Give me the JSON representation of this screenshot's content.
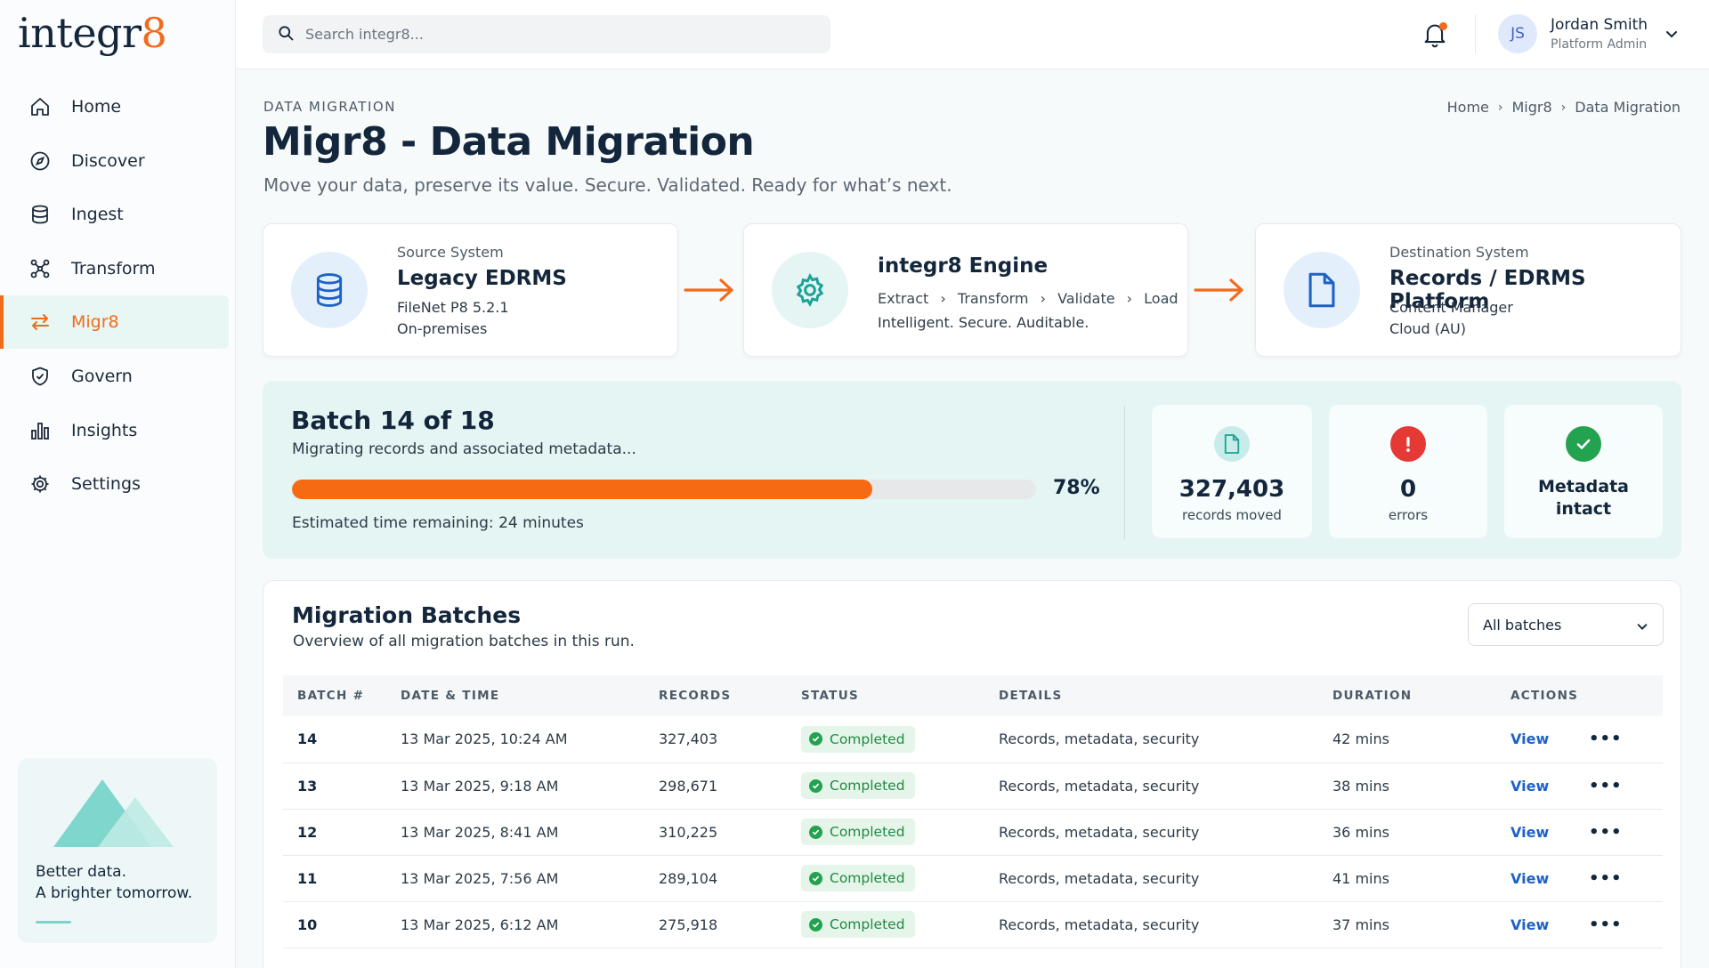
{
  "brand": {
    "logo_main": "integr",
    "logo_accent": "8"
  },
  "sidebar": {
    "items": [
      {
        "label": "Home",
        "icon": "home-icon"
      },
      {
        "label": "Discover",
        "icon": "compass-icon"
      },
      {
        "label": "Ingest",
        "icon": "database-icon"
      },
      {
        "label": "Transform",
        "icon": "transform-icon"
      },
      {
        "label": "Migr8",
        "icon": "swap-arrows-icon",
        "active": true
      },
      {
        "label": "Govern",
        "icon": "shield-icon"
      },
      {
        "label": "Insights",
        "icon": "bar-chart-icon"
      },
      {
        "label": "Settings",
        "icon": "gear-icon"
      }
    ],
    "promo": {
      "line1": "Better data.",
      "line2": "A brighter tomorrow."
    }
  },
  "topbar": {
    "search_placeholder": "Search integr8...",
    "user": {
      "initials": "JS",
      "name": "Jordan Smith",
      "role": "Platform Admin"
    }
  },
  "header": {
    "eyebrow": "DATA MIGRATION",
    "title": "Migr8 - Data Migration",
    "subtitle": "Move your data, preserve its value. Secure. Validated. Ready for what’s next.",
    "breadcrumb": [
      "Home",
      "Migr8",
      "Data Migration"
    ]
  },
  "flow": {
    "source": {
      "eyebrow": "Source System",
      "title": "Legacy EDRMS",
      "line1": "FileNet P8 5.2.1",
      "line2": "On-premises"
    },
    "engine": {
      "title": "integr8 Engine",
      "steps": [
        "Extract",
        "Transform",
        "Validate",
        "Load"
      ],
      "tagline": "Intelligent. Secure. Auditable."
    },
    "destination": {
      "eyebrow": "Destination System",
      "title": "Records / EDRMS Platform",
      "line1": "Content Manager",
      "line2": "Cloud (AU)"
    }
  },
  "batch": {
    "title": "Batch 14 of 18",
    "subtitle": "Migrating records and associated metadata...",
    "progress": 0.78,
    "progress_label": "78%",
    "eta": "Estimated time remaining: 24 minutes",
    "stats": {
      "records": {
        "value": "327,403",
        "label": "records moved"
      },
      "errors": {
        "value": "0",
        "label": "errors"
      },
      "metadata": {
        "line1": "Metadata",
        "line2": "intact"
      }
    }
  },
  "batches_table": {
    "title": "Migration Batches",
    "subtitle": "Overview of all migration batches in this run.",
    "filter": "All batches",
    "columns": [
      "BATCH #",
      "DATE & TIME",
      "RECORDS",
      "STATUS",
      "DETAILS",
      "DURATION",
      "ACTIONS"
    ],
    "rows": [
      {
        "batch": "14",
        "datetime": "13 Mar 2025, 10:24 AM",
        "records": "327,403",
        "status": "Completed",
        "details": "Records, metadata, security",
        "duration": "42 mins",
        "action": "View"
      },
      {
        "batch": "13",
        "datetime": "13 Mar 2025, 9:18 AM",
        "records": "298,671",
        "status": "Completed",
        "details": "Records, metadata, security",
        "duration": "38 mins",
        "action": "View"
      },
      {
        "batch": "12",
        "datetime": "13 Mar 2025, 8:41 AM",
        "records": "310,225",
        "status": "Completed",
        "details": "Records, metadata, security",
        "duration": "36 mins",
        "action": "View"
      },
      {
        "batch": "11",
        "datetime": "13 Mar 2025, 7:56 AM",
        "records": "289,104",
        "status": "Completed",
        "details": "Records, metadata, security",
        "duration": "41 mins",
        "action": "View"
      },
      {
        "batch": "10",
        "datetime": "13 Mar 2025, 6:12 AM",
        "records": "275,918",
        "status": "Completed",
        "details": "Records, metadata, security",
        "duration": "37 mins",
        "action": "View"
      }
    ]
  },
  "colors": {
    "accent": "#f26a1b",
    "navy": "#13263b",
    "teal_bg": "#e4f5f3",
    "success": "#23a24f",
    "error": "#e53935",
    "link": "#1f62c6"
  }
}
